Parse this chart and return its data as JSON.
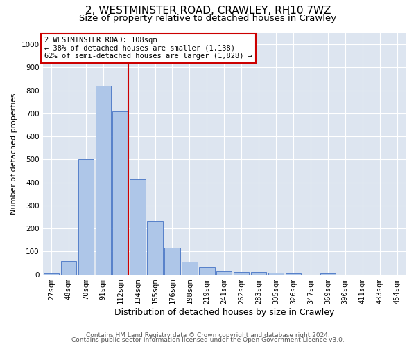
{
  "title1": "2, WESTMINSTER ROAD, CRAWLEY, RH10 7WZ",
  "title2": "Size of property relative to detached houses in Crawley",
  "xlabel": "Distribution of detached houses by size in Crawley",
  "ylabel": "Number of detached properties",
  "bin_labels": [
    "27sqm",
    "48sqm",
    "70sqm",
    "91sqm",
    "112sqm",
    "134sqm",
    "155sqm",
    "176sqm",
    "198sqm",
    "219sqm",
    "241sqm",
    "262sqm",
    "283sqm",
    "305sqm",
    "326sqm",
    "347sqm",
    "369sqm",
    "390sqm",
    "411sqm",
    "433sqm",
    "454sqm"
  ],
  "bar_values": [
    5,
    60,
    500,
    820,
    710,
    415,
    230,
    115,
    57,
    32,
    14,
    12,
    10,
    8,
    4,
    0,
    5,
    0,
    0,
    0,
    0
  ],
  "bar_color": "#aec6e8",
  "bar_edge_color": "#4472c4",
  "vline_index": 4,
  "vline_color": "#cc0000",
  "annotation_text": "2 WESTMINSTER ROAD: 108sqm\n← 38% of detached houses are smaller (1,138)\n62% of semi-detached houses are larger (1,828) →",
  "annotation_box_color": "#ffffff",
  "annotation_box_edge_color": "#cc0000",
  "ylim": [
    0,
    1050
  ],
  "yticks": [
    0,
    100,
    200,
    300,
    400,
    500,
    600,
    700,
    800,
    900,
    1000
  ],
  "background_color": "#dde5f0",
  "grid_color": "#ffffff",
  "footer1": "Contains HM Land Registry data © Crown copyright and database right 2024.",
  "footer2": "Contains public sector information licensed under the Open Government Licence v3.0.",
  "title1_fontsize": 11,
  "title2_fontsize": 9.5,
  "xlabel_fontsize": 9,
  "ylabel_fontsize": 8,
  "tick_fontsize": 7.5,
  "annotation_fontsize": 7.5,
  "footer_fontsize": 6.5
}
